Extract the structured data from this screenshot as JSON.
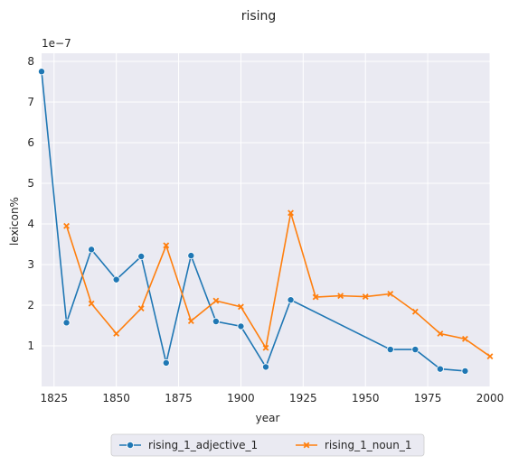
{
  "chart_data": {
    "type": "line",
    "title": "rising",
    "xlabel": "year",
    "ylabel": "lexicon%",
    "y_multiplier_label": "1e−7",
    "xlim": [
      1820,
      2000
    ],
    "ylim": [
      0.0,
      8.2
    ],
    "x_ticks": [
      1825,
      1850,
      1875,
      1900,
      1925,
      1950,
      1975,
      2000
    ],
    "y_ticks": [
      1,
      2,
      3,
      4,
      5,
      6,
      7,
      8
    ],
    "grid": true,
    "legend_position": "bottom-center",
    "series": [
      {
        "name": "rising_1_adjective_1",
        "color": "#1f77b4",
        "marker": "circle",
        "x": [
          1820,
          1830,
          1840,
          1850,
          1860,
          1870,
          1880,
          1890,
          1900,
          1910,
          1920,
          1960,
          1970,
          1980,
          1990
        ],
        "y": [
          7.75,
          1.57,
          3.37,
          2.63,
          3.2,
          0.58,
          3.22,
          1.6,
          1.48,
          0.48,
          2.13,
          0.91,
          0.91,
          0.43,
          0.38
        ]
      },
      {
        "name": "rising_1_noun_1",
        "color": "#ff7f0e",
        "marker": "x",
        "x": [
          1830,
          1840,
          1850,
          1860,
          1870,
          1880,
          1890,
          1900,
          1910,
          1920,
          1930,
          1940,
          1950,
          1960,
          1970,
          1980,
          1990,
          2000
        ],
        "y": [
          3.95,
          2.04,
          1.3,
          1.92,
          3.47,
          1.61,
          2.11,
          1.96,
          0.95,
          4.27,
          2.2,
          2.23,
          2.21,
          2.28,
          1.84,
          1.3,
          1.17,
          0.74
        ]
      }
    ]
  }
}
